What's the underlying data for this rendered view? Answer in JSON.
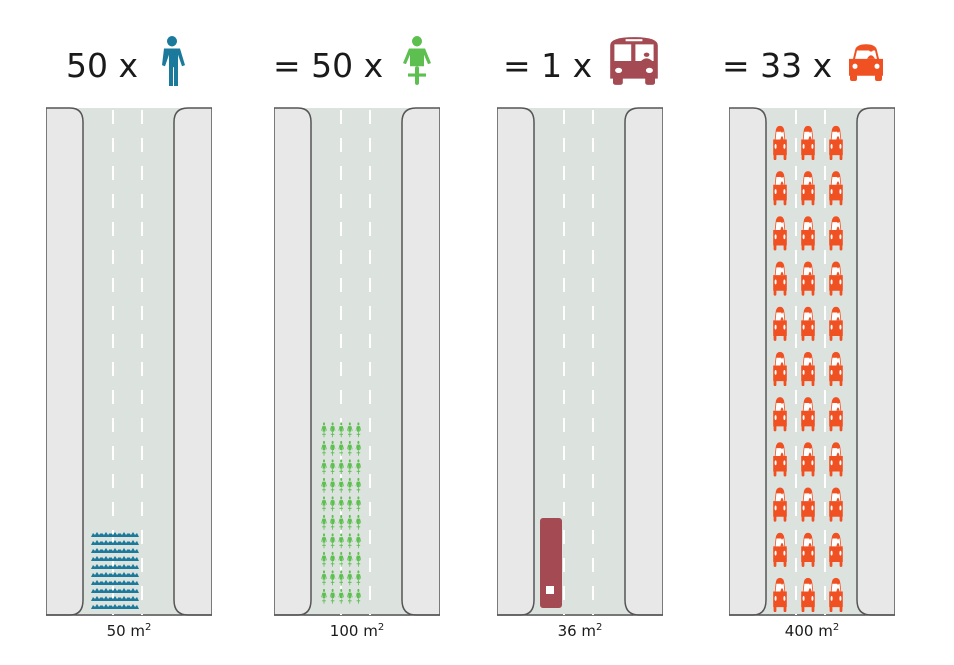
{
  "colors": {
    "pedestrian": "#1b7a9c",
    "bicycle": "#5cbf4f",
    "bus": "#a34a52",
    "car": "#ef5123",
    "road": "#dce3de",
    "sidewalk": "#e8e8e8",
    "curb": "#555555"
  },
  "panels": [
    {
      "mode": "pedestrian",
      "header": "50 x",
      "icon": "pedestrian-icon",
      "count": 50,
      "area": "50 m",
      "area_unit_exp": "2"
    },
    {
      "mode": "bicycle",
      "header": "= 50 x",
      "icon": "bicycle-icon",
      "count": 50,
      "area": "100 m",
      "area_unit_exp": "2"
    },
    {
      "mode": "bus",
      "header": "= 1 x",
      "icon": "bus-icon",
      "count": 1,
      "area": "36 m",
      "area_unit_exp": "2"
    },
    {
      "mode": "car",
      "header": "= 33 x",
      "icon": "car-icon",
      "count": 33,
      "area": "400 m",
      "area_unit_exp": "2"
    }
  ]
}
